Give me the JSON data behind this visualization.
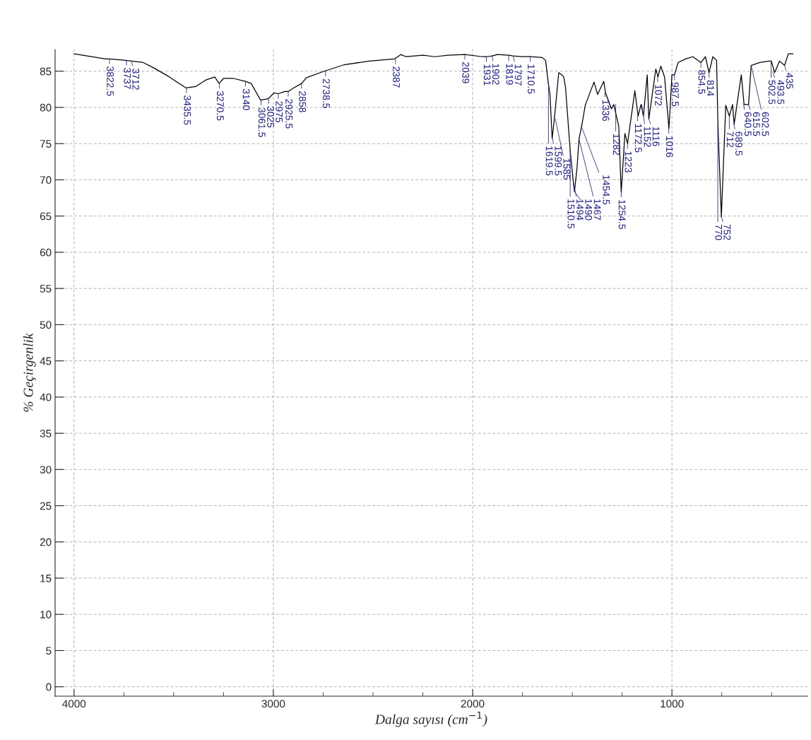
{
  "chart_data": {
    "type": "line",
    "xlabel": "Dalga sayısı (cm$^{−1}$)",
    "ylabel": "% Geçirgenlik",
    "xlim": [
      4095,
      320
    ],
    "ylim": [
      -1.3,
      88
    ],
    "xticks": [
      4000,
      3000,
      2000,
      1000
    ],
    "yticks": [
      0,
      5,
      10,
      15,
      20,
      25,
      30,
      35,
      40,
      45,
      50,
      55,
      60,
      65,
      70,
      75,
      80,
      85
    ],
    "grid": true,
    "x": [
      4000,
      3842,
      3822.5,
      3741,
      3712,
      3653,
      3603,
      3527,
      3439,
      3388,
      3338,
      3294,
      3272,
      3250,
      3199,
      3140,
      3111,
      3064,
      3025,
      2997,
      2975,
      2941,
      2925.5,
      2897,
      2858,
      2834,
      2745,
      2644,
      2518,
      2392,
      2360,
      2335,
      2248,
      2190,
      2124,
      2039,
      1950,
      1931,
      1902,
      1876,
      1819,
      1797,
      1752,
      1710.5,
      1652,
      1634,
      1621,
      1612,
      1601,
      1590,
      1568,
      1553,
      1543,
      1534,
      1510.5,
      1494,
      1489,
      1476,
      1466,
      1453,
      1435,
      1391,
      1373,
      1342,
      1334,
      1304,
      1292,
      1267,
      1254.5,
      1236,
      1223,
      1186,
      1170,
      1155,
      1143,
      1124,
      1116,
      1081,
      1070,
      1056,
      1037,
      1015,
      1000,
      987.5,
      969,
      932,
      895,
      855,
      832,
      814,
      795,
      776,
      769,
      752,
      730,
      712,
      696,
      688,
      652,
      638,
      615.5,
      602.5,
      559,
      510,
      501,
      485,
      460,
      435,
      416,
      392
    ],
    "series": [
      {
        "color": "#000000",
        "values": [
          87.4,
          86.7,
          86.7,
          86.5,
          86.4,
          86.2,
          85.5,
          84.3,
          82.7,
          82.9,
          83.8,
          84.2,
          83.3,
          84.0,
          84.0,
          83.6,
          83.3,
          81.0,
          81.2,
          82.0,
          81.9,
          82.2,
          82.2,
          82.7,
          83.3,
          84.1,
          85.0,
          85.9,
          86.4,
          86.7,
          87.3,
          87.0,
          87.2,
          87.0,
          87.2,
          87.3,
          87.0,
          87.0,
          87.1,
          87.3,
          87.2,
          87.1,
          87.0,
          87.0,
          86.9,
          86.5,
          83.5,
          81.8,
          75.7,
          78.4,
          84.8,
          84.5,
          84.2,
          82.8,
          74.0,
          69.5,
          68.4,
          71.7,
          75.7,
          77.4,
          80.3,
          83.5,
          81.8,
          83.6,
          82.1,
          79.8,
          80.4,
          77.4,
          68.3,
          76.4,
          75.0,
          82.3,
          78.8,
          80.4,
          78.8,
          84.5,
          78.4,
          85.3,
          84.2,
          85.7,
          84.2,
          77.1,
          84.5,
          84.5,
          86.2,
          86.7,
          87.0,
          86.2,
          87.0,
          84.8,
          87.0,
          86.5,
          77.4,
          64.9,
          80.3,
          78.8,
          80.4,
          77.7,
          84.5,
          80.4,
          80.4,
          85.8,
          86.2,
          86.4,
          86.4,
          84.8,
          86.4,
          85.8,
          87.4,
          87.4
        ]
      }
    ],
    "annotations": [
      {
        "text": "3822.5",
        "x": 3822.5,
        "y": 86.7
      },
      {
        "text": "3737",
        "x": 3737,
        "y": 86.5
      },
      {
        "text": "3712",
        "x": 3712,
        "y": 86.4
      },
      {
        "text": "3435.5",
        "x": 3435.5,
        "y": 82.7
      },
      {
        "text": "3270.5",
        "x": 3270.5,
        "y": 83.3
      },
      {
        "text": "3140",
        "x": 3140,
        "y": 83.6
      },
      {
        "text": "3061.5",
        "x": 3061.5,
        "y": 81.0
      },
      {
        "text": "3025",
        "x": 3025,
        "y": 81.2
      },
      {
        "text": "2975",
        "x": 2975,
        "y": 81.9
      },
      {
        "text": "2925.5",
        "x": 2925.5,
        "y": 82.2
      },
      {
        "text": "2858",
        "x": 2858,
        "y": 83.3
      },
      {
        "text": "2738.5",
        "x": 2738.5,
        "y": 85.0
      },
      {
        "text": "2387",
        "x": 2387,
        "y": 86.7
      },
      {
        "text": "2039",
        "x": 2039,
        "y": 87.3
      },
      {
        "text": "1931",
        "x": 1931,
        "y": 87.0
      },
      {
        "text": "1902",
        "x": 1902,
        "y": 87.1
      },
      {
        "text": "1819",
        "x": 1819,
        "y": 87.2
      },
      {
        "text": "1797",
        "x": 1797,
        "y": 87.1
      },
      {
        "text": "1710.5",
        "x": 1710.5,
        "y": 87.0
      },
      {
        "text": "1619.5",
        "x": 1619.5,
        "y": 83.5
      },
      {
        "text": "1599.5",
        "x": 1599.5,
        "y": 75.7
      },
      {
        "text": "1585",
        "x": 1585,
        "y": 78.4
      },
      {
        "text": "1510.5",
        "x": 1510.5,
        "y": 74.0
      },
      {
        "text": "1494",
        "x": 1494,
        "y": 69.5
      },
      {
        "text": "1490",
        "x": 1490,
        "y": 68.4
      },
      {
        "text": "1467",
        "x": 1467,
        "y": 75.7
      },
      {
        "text": "1454.5",
        "x": 1454.5,
        "y": 77.4
      },
      {
        "text": "1336",
        "x": 1336,
        "y": 82.1
      },
      {
        "text": "1282",
        "x": 1282,
        "y": 80.4
      },
      {
        "text": "1254.5",
        "x": 1254.5,
        "y": 68.3
      },
      {
        "text": "1223",
        "x": 1223,
        "y": 75.0
      },
      {
        "text": "1172.5",
        "x": 1172.5,
        "y": 78.8
      },
      {
        "text": "1152",
        "x": 1152,
        "y": 80.4
      },
      {
        "text": "1116",
        "x": 1116,
        "y": 78.4
      },
      {
        "text": "1072",
        "x": 1072,
        "y": 84.2
      },
      {
        "text": "1016",
        "x": 1016,
        "y": 77.1
      },
      {
        "text": "987.5",
        "x": 987.5,
        "y": 84.5
      },
      {
        "text": "854.5",
        "x": 854.5,
        "y": 86.2
      },
      {
        "text": "814",
        "x": 814,
        "y": 84.8
      },
      {
        "text": "770",
        "x": 770,
        "y": 77.4
      },
      {
        "text": "752",
        "x": 752,
        "y": 64.9
      },
      {
        "text": "712",
        "x": 712,
        "y": 78.8
      },
      {
        "text": "689.5",
        "x": 689.5,
        "y": 77.7
      },
      {
        "text": "640.5",
        "x": 640.5,
        "y": 80.4
      },
      {
        "text": "615.5",
        "x": 615.5,
        "y": 80.4
      },
      {
        "text": "602.5",
        "x": 602.5,
        "y": 85.8
      },
      {
        "text": "502.5",
        "x": 502.5,
        "y": 86.4
      },
      {
        "text": "493.5",
        "x": 493.5,
        "y": 84.8
      },
      {
        "text": "435",
        "x": 435,
        "y": 85.8
      }
    ]
  }
}
